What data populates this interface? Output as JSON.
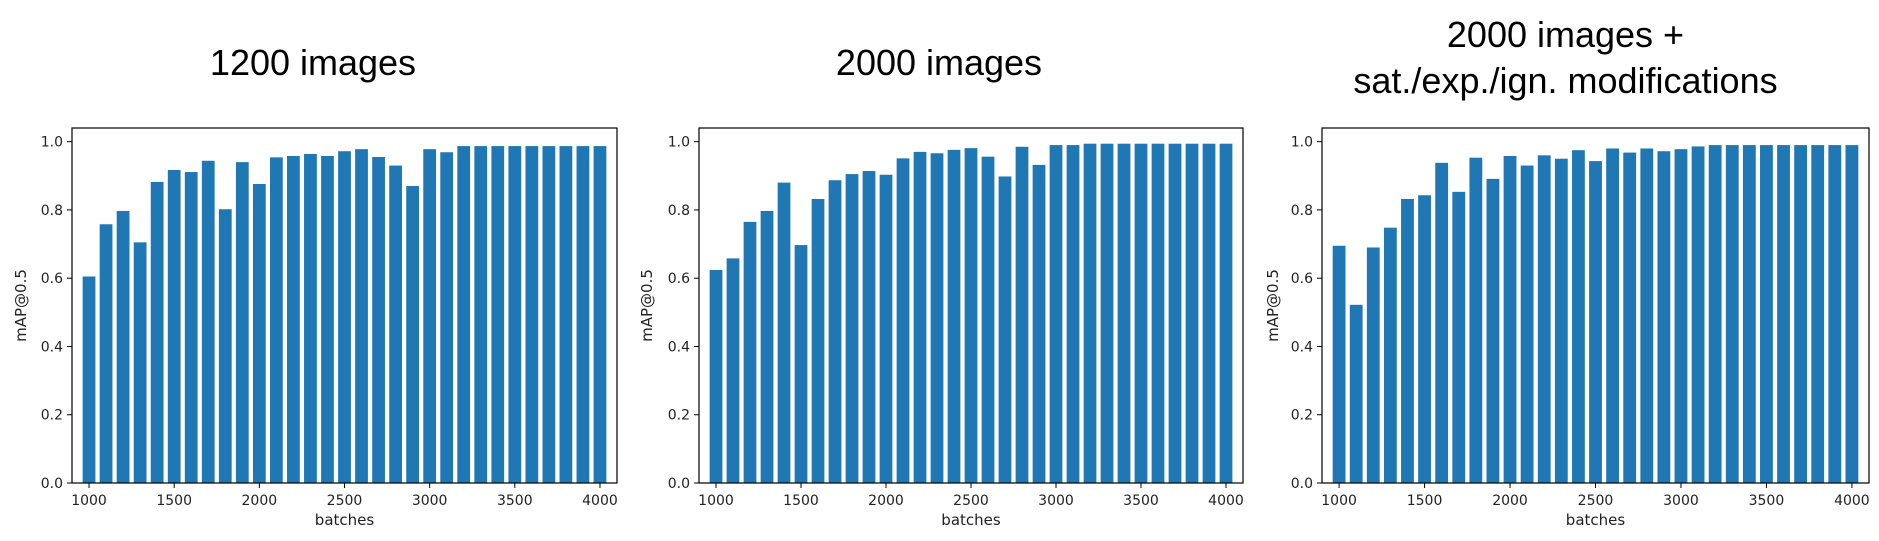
{
  "colors": {
    "bar": "#1f77b4",
    "axis": "#000000",
    "text": "#222222"
  },
  "chart_data": [
    {
      "type": "bar",
      "title": [
        "1200 images"
      ],
      "xlabel": "batches",
      "ylabel": "mAP@0.5",
      "xlim": [
        900,
        4100
      ],
      "ylim": [
        0,
        1.04
      ],
      "xticks": [
        1000,
        1500,
        2000,
        2500,
        3000,
        3500,
        4000
      ],
      "yticks": [
        0.0,
        0.2,
        0.4,
        0.6,
        0.8,
        1.0
      ],
      "bar_width": 75,
      "x": [
        1000,
        1100,
        1200,
        1300,
        1400,
        1500,
        1600,
        1700,
        1800,
        1900,
        2000,
        2100,
        2200,
        2300,
        2400,
        2500,
        2600,
        2700,
        2800,
        2900,
        3000,
        3100,
        3200,
        3300,
        3400,
        3500,
        3600,
        3700,
        3800,
        3900,
        4000
      ],
      "values": [
        0.605,
        0.758,
        0.797,
        0.705,
        0.882,
        0.917,
        0.911,
        0.944,
        0.802,
        0.94,
        0.876,
        0.954,
        0.958,
        0.964,
        0.958,
        0.972,
        0.978,
        0.955,
        0.93,
        0.87,
        0.978,
        0.969,
        0.987,
        0.987,
        0.987,
        0.987,
        0.987,
        0.987,
        0.987,
        0.987,
        0.987
      ]
    },
    {
      "type": "bar",
      "title": [
        "2000 images"
      ],
      "xlabel": "batches",
      "ylabel": "mAP@0.5",
      "xlim": [
        900,
        4100
      ],
      "ylim": [
        0,
        1.04
      ],
      "xticks": [
        1000,
        1500,
        2000,
        2500,
        3000,
        3500,
        4000
      ],
      "yticks": [
        0.0,
        0.2,
        0.4,
        0.6,
        0.8,
        1.0
      ],
      "bar_width": 75,
      "x": [
        1000,
        1100,
        1200,
        1300,
        1400,
        1500,
        1600,
        1700,
        1800,
        1900,
        2000,
        2100,
        2200,
        2300,
        2400,
        2500,
        2600,
        2700,
        2800,
        2900,
        3000,
        3100,
        3200,
        3300,
        3400,
        3500,
        3600,
        3700,
        3800,
        3900,
        4000
      ],
      "values": [
        0.624,
        0.658,
        0.765,
        0.797,
        0.88,
        0.697,
        0.832,
        0.887,
        0.905,
        0.914,
        0.903,
        0.951,
        0.97,
        0.966,
        0.976,
        0.981,
        0.956,
        0.898,
        0.985,
        0.932,
        0.99,
        0.99,
        0.994,
        0.994,
        0.994,
        0.994,
        0.994,
        0.994,
        0.994,
        0.994,
        0.994
      ]
    },
    {
      "type": "bar",
      "title": [
        "2000 images +",
        "sat./exp./ign. modifications"
      ],
      "xlabel": "batches",
      "ylabel": "mAP@0.5",
      "xlim": [
        900,
        4100
      ],
      "ylim": [
        0,
        1.04
      ],
      "xticks": [
        1000,
        1500,
        2000,
        2500,
        3000,
        3500,
        4000
      ],
      "yticks": [
        0.0,
        0.2,
        0.4,
        0.6,
        0.8,
        1.0
      ],
      "bar_width": 75,
      "x": [
        1000,
        1100,
        1200,
        1300,
        1400,
        1500,
        1600,
        1700,
        1800,
        1900,
        2000,
        2100,
        2200,
        2300,
        2400,
        2500,
        2600,
        2700,
        2800,
        2900,
        3000,
        3100,
        3200,
        3300,
        3400,
        3500,
        3600,
        3700,
        3800,
        3900,
        4000
      ],
      "values": [
        0.695,
        0.522,
        0.69,
        0.748,
        0.832,
        0.843,
        0.938,
        0.853,
        0.953,
        0.891,
        0.958,
        0.93,
        0.96,
        0.95,
        0.975,
        0.943,
        0.98,
        0.968,
        0.98,
        0.972,
        0.978,
        0.986,
        0.99,
        0.99,
        0.99,
        0.99,
        0.99,
        0.99,
        0.99,
        0.99,
        0.99
      ]
    }
  ]
}
